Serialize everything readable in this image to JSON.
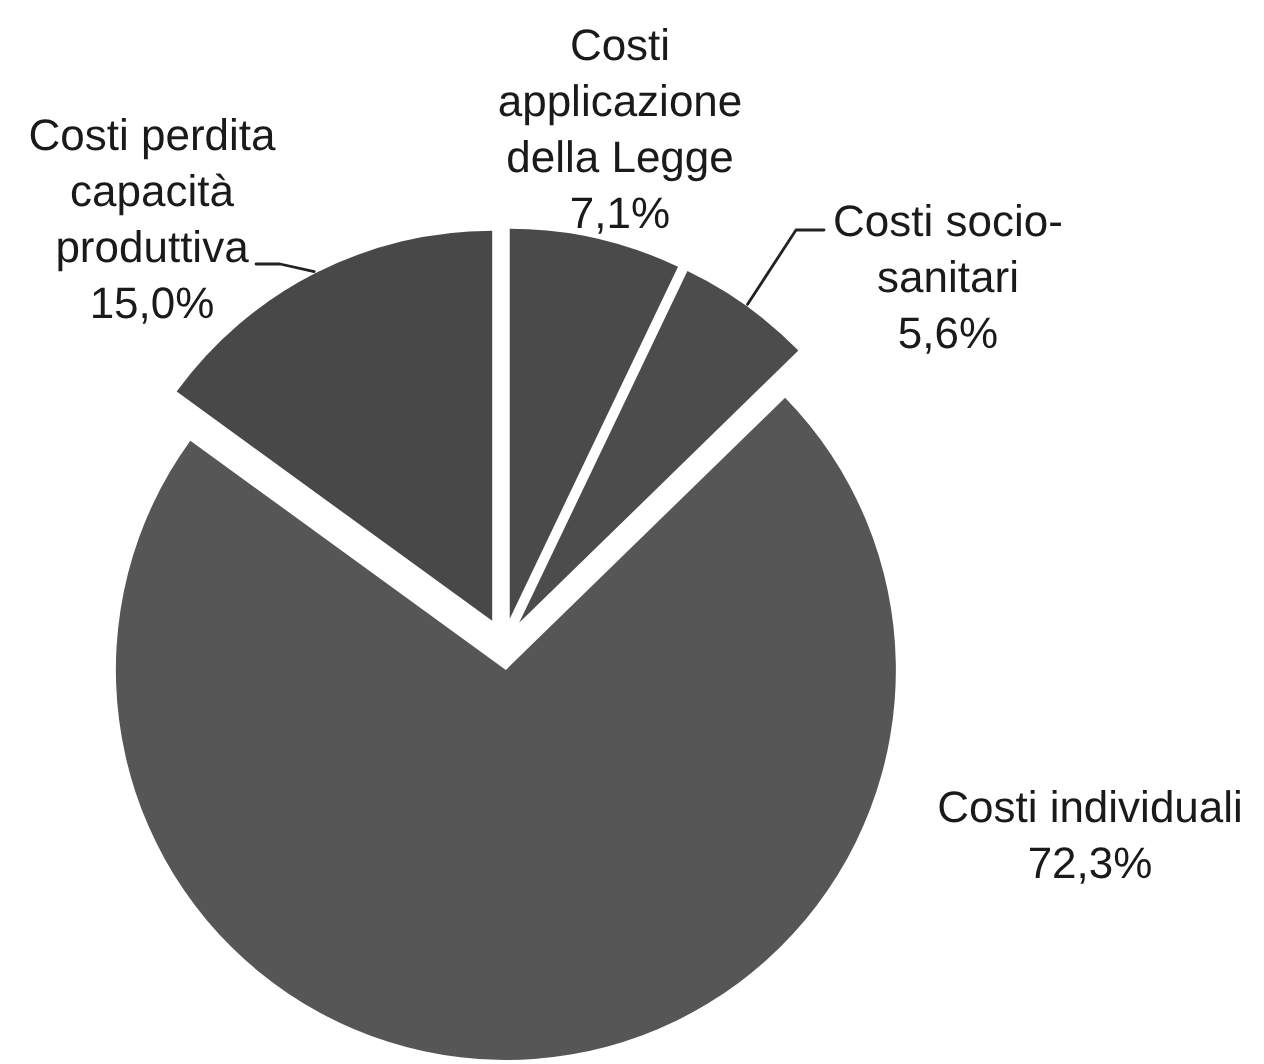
{
  "chart_data": {
    "type": "pie",
    "categories": [
      "Costi applicazione della Legge",
      "Costi socio-sanitari",
      "Costi individuali",
      "Costi perdita capacità produttiva"
    ],
    "values": [
      7.1,
      5.6,
      72.3,
      15.0
    ],
    "value_labels": [
      "7,1%",
      "5,6%",
      "72,3%",
      "15,0%"
    ],
    "colors": [
      "#4a4a4a",
      "#4c4c4c",
      "#565656",
      "#484848"
    ]
  }
}
